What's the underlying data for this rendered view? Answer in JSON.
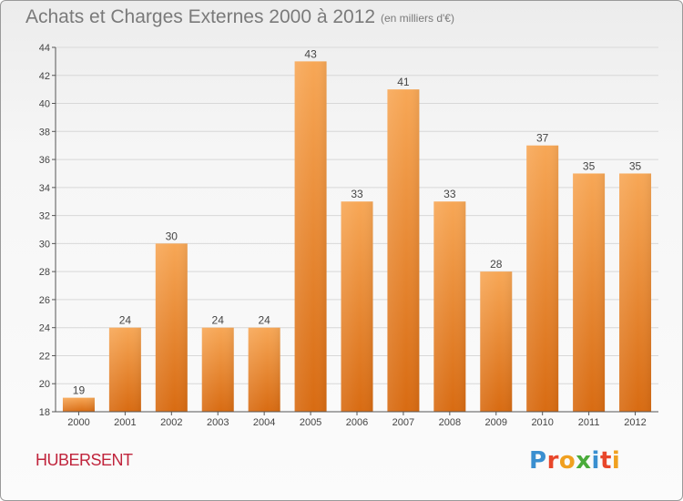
{
  "header": {
    "title": "Achats et Charges Externes 2000 à 2012",
    "unit_note": "(en milliers d'€)"
  },
  "footer": {
    "place_name": "HUBERSENT",
    "brand_logo_text": "Proxiti"
  },
  "colors": {
    "bar_top": "#f7a756",
    "bar_bottom": "#d86b12",
    "axis": "#555555",
    "grid": "#d8d8d8",
    "place": "#c0243c"
  },
  "chart_data": {
    "type": "bar",
    "title": "Achats et Charges Externes 2000 à 2012",
    "subtitle": "(en milliers d'€)",
    "categories": [
      "2000",
      "2001",
      "2002",
      "2003",
      "2004",
      "2005",
      "2006",
      "2007",
      "2008",
      "2009",
      "2010",
      "2011",
      "2012"
    ],
    "values": [
      19,
      24,
      30,
      24,
      24,
      43,
      33,
      41,
      33,
      28,
      37,
      35,
      35
    ],
    "ylim": [
      18,
      44
    ],
    "yticks": [
      18,
      20,
      22,
      24,
      26,
      28,
      30,
      32,
      34,
      36,
      38,
      40,
      42,
      44
    ],
    "grid": true,
    "data_labels": true,
    "xlabel": "",
    "ylabel": ""
  }
}
